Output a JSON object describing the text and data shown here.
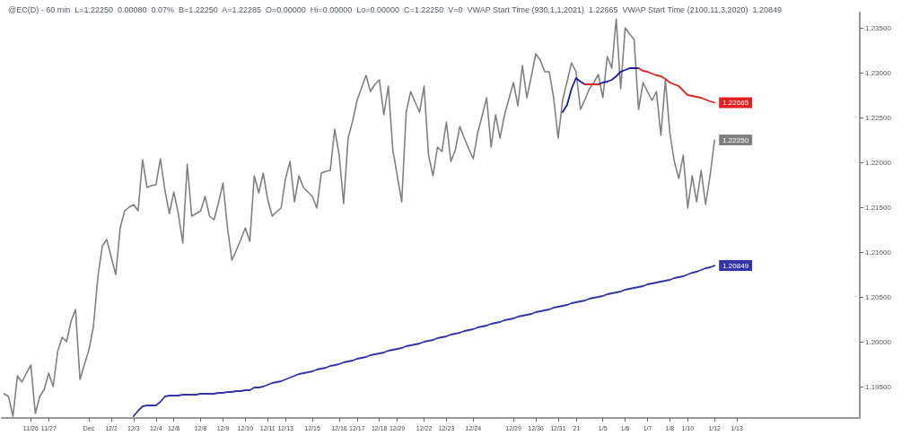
{
  "chart_data": {
    "type": "line",
    "title": "@EC(D) - 60 min  L=1.22250  0.00080  0.07%  B=1.22250  A=1.22285  O=0.00000  Hi=0.00000  Lo=0.00000  C=1.22250  V=0  VWAP Start Time (930,1,1,2021)  1.22665  VWAP Start Time (2100,11,3,2020)  1.20849",
    "categories": [
      null,
      null,
      null,
      null,
      null,
      null,
      "11/26",
      null,
      null,
      null,
      "11/27",
      null,
      null,
      null,
      null,
      null,
      null,
      null,
      null,
      "Dec",
      null,
      null,
      null,
      null,
      "12/2",
      null,
      null,
      null,
      null,
      "12/3",
      null,
      null,
      null,
      null,
      "12/4",
      null,
      null,
      null,
      "12/6",
      null,
      null,
      null,
      null,
      null,
      "12/8",
      null,
      null,
      null,
      null,
      "12/9",
      null,
      null,
      null,
      null,
      "12/10",
      null,
      null,
      null,
      null,
      "12/11",
      null,
      null,
      null,
      "12/13",
      null,
      null,
      null,
      null,
      null,
      "12/15",
      null,
      null,
      null,
      null,
      null,
      "12/16",
      null,
      null,
      null,
      "12/17",
      null,
      null,
      null,
      null,
      "12/18",
      null,
      null,
      null,
      "12/20",
      null,
      null,
      null,
      null,
      null,
      "12/22",
      null,
      null,
      null,
      null,
      "12/23",
      null,
      null,
      null,
      null,
      null,
      "12/24",
      null,
      null,
      null,
      null,
      null,
      null,
      null,
      null,
      "12/29",
      null,
      null,
      null,
      null,
      "12/30",
      null,
      null,
      null,
      null,
      "12/31",
      null,
      null,
      null,
      "'21",
      null,
      null,
      null,
      null,
      null,
      "1/5",
      null,
      null,
      null,
      null,
      "1/6",
      null,
      null,
      null,
      null,
      "1/7",
      null,
      null,
      null,
      null,
      "1/8",
      null,
      null,
      null,
      "1/10",
      null,
      null,
      null,
      null,
      null,
      "1/12",
      null,
      null,
      null,
      null,
      "1/13",
      null,
      null,
      null,
      null,
      null,
      null,
      null,
      null,
      null,
      null,
      null,
      null,
      null,
      null,
      null,
      null,
      null,
      null,
      null,
      null,
      null,
      null,
      null,
      null,
      null,
      null,
      null
    ],
    "ylim": [
      1.1915,
      1.2367
    ],
    "yticks": [
      {
        "value": 1.195,
        "label": "1.19500"
      },
      {
        "value": 1.2,
        "label": "1.20000"
      },
      {
        "value": 1.205,
        "label": "1.20500"
      },
      {
        "value": 1.21,
        "label": "1.21000"
      },
      {
        "value": 1.215,
        "label": "1.21500"
      },
      {
        "value": 1.22,
        "label": "1.22000"
      },
      {
        "value": 1.225,
        "label": "1.22500"
      },
      {
        "value": 1.23,
        "label": "1.23000"
      },
      {
        "value": 1.235,
        "label": "1.23500"
      }
    ],
    "grid": false,
    "marker": "none",
    "annotations": [
      {
        "text": "1.22665",
        "x": "1/12",
        "y": 1.22665
      },
      {
        "text": "1.22250",
        "x": "1/12",
        "y": 1.2225
      },
      {
        "text": "1.20849",
        "x": "1/12",
        "y": 1.20849
      }
    ],
    "series": [
      {
        "color": "#808080",
        "values": [
          1.1942,
          1.1939,
          1.1917,
          1.1962,
          1.1955,
          1.1965,
          1.1974,
          1.192,
          1.1939,
          1.1947,
          1.1965,
          1.195,
          1.1989,
          1.2005,
          1.2,
          1.2023,
          1.2036,
          1.1958,
          1.1975,
          1.1991,
          1.2017,
          1.2072,
          1.2107,
          1.2114,
          1.2094,
          1.2075,
          1.2127,
          1.2146,
          1.215,
          1.2153,
          1.2146,
          1.2203,
          1.2172,
          1.2174,
          1.2175,
          1.2204,
          1.2169,
          1.2143,
          1.2167,
          1.2143,
          1.211,
          1.2198,
          1.214,
          1.2143,
          1.2146,
          1.2162,
          1.214,
          1.2136,
          1.2155,
          1.2177,
          1.2127,
          1.2091,
          1.2102,
          1.2114,
          1.2127,
          1.2112,
          1.2185,
          1.2166,
          1.2188,
          1.2159,
          1.214,
          1.2145,
          1.2149,
          1.2182,
          1.2201,
          1.2156,
          1.2185,
          1.2172,
          1.2167,
          1.2162,
          1.2149,
          1.2188,
          1.219,
          1.2191,
          1.2237,
          1.2208,
          1.2154,
          1.2227,
          1.2246,
          1.2269,
          1.2283,
          1.2297,
          1.2279,
          1.2287,
          1.2292,
          1.2253,
          1.2285,
          1.2214,
          1.2185,
          1.2156,
          1.2256,
          1.2279,
          1.2267,
          1.2256,
          1.2285,
          1.2208,
          1.2185,
          1.2217,
          1.2212,
          1.2245,
          1.2201,
          1.2214,
          1.224,
          1.2227,
          1.2215,
          1.2204,
          1.2233,
          1.2252,
          1.2272,
          1.2217,
          1.2253,
          1.2227,
          1.2253,
          1.2271,
          1.2289,
          1.2263,
          1.2308,
          1.2272,
          1.2296,
          1.2321,
          1.2314,
          1.2301,
          1.2301,
          1.2272,
          1.2227,
          1.2269,
          1.229,
          1.2311,
          1.2301,
          1.2259,
          1.227,
          1.2282,
          1.2289,
          1.2298,
          1.2272,
          1.2318,
          1.2305,
          1.236,
          1.2282,
          1.235,
          1.2343,
          1.2337,
          1.2259,
          1.2289,
          1.2279,
          1.2269,
          1.2279,
          1.223,
          1.2292,
          1.2233,
          1.2201,
          1.2182,
          1.2208,
          1.2149,
          1.2185,
          1.2156,
          1.2191,
          1.2153,
          1.2185,
          1.2225,
          null,
          null,
          null,
          null,
          null,
          null,
          null,
          null,
          null,
          null,
          null,
          null,
          null,
          null,
          null,
          null,
          null,
          null,
          null,
          null,
          null,
          null,
          null,
          null,
          null,
          null,
          null,
          null,
          null,
          null,
          null,
          null
        ]
      },
      {
        "color": "#1a1aa6",
        "values": [
          null,
          null,
          null,
          null,
          null,
          null,
          null,
          null,
          null,
          null,
          null,
          null,
          null,
          null,
          null,
          null,
          null,
          null,
          null,
          null,
          null,
          null,
          null,
          null,
          null,
          null,
          null,
          null,
          null,
          null,
          null,
          null,
          null,
          null,
          null,
          null,
          null,
          null,
          null,
          null,
          null,
          null,
          null,
          null,
          null,
          null,
          null,
          null,
          null,
          null,
          null,
          null,
          null,
          null,
          null,
          null,
          null,
          null,
          null,
          null,
          null,
          null,
          null,
          null,
          null,
          null,
          null,
          null,
          null,
          null,
          null,
          null,
          null,
          null,
          null,
          null,
          null,
          null,
          null,
          null,
          null,
          null,
          null,
          null,
          null,
          null,
          null,
          null,
          null,
          null,
          null,
          null,
          null,
          null,
          null,
          null,
          null,
          null,
          null,
          null,
          null,
          null,
          null,
          null,
          null,
          null,
          null,
          null,
          null,
          null,
          null,
          null,
          null,
          null,
          null,
          null,
          null,
          null,
          null,
          null,
          null,
          null,
          null,
          null,
          null,
          1.2256,
          1.2264,
          1.2282,
          1.2294,
          1.229,
          1.2287,
          null,
          null,
          1.2287,
          1.2289,
          1.229,
          1.2292,
          1.2296,
          1.2301,
          1.2303,
          1.2305,
          1.2305,
          1.2305,
          null,
          null,
          null,
          null,
          null,
          null,
          null,
          null,
          null,
          null,
          null,
          null,
          null,
          null,
          null,
          null,
          null,
          null,
          null,
          null,
          null,
          null,
          null,
          null,
          null,
          null,
          null,
          null,
          null,
          null,
          null,
          null,
          null,
          null,
          null,
          null,
          null,
          null,
          null,
          null,
          null,
          null,
          null,
          null,
          null,
          null,
          null,
          null,
          null
        ]
      },
      {
        "color": "#e02020",
        "values": [
          null,
          null,
          null,
          null,
          null,
          null,
          null,
          null,
          null,
          null,
          null,
          null,
          null,
          null,
          null,
          null,
          null,
          null,
          null,
          null,
          null,
          null,
          null,
          null,
          null,
          null,
          null,
          null,
          null,
          null,
          null,
          null,
          null,
          null,
          null,
          null,
          null,
          null,
          null,
          null,
          null,
          null,
          null,
          null,
          null,
          null,
          null,
          null,
          null,
          null,
          null,
          null,
          null,
          null,
          null,
          null,
          null,
          null,
          null,
          null,
          null,
          null,
          null,
          null,
          null,
          null,
          null,
          null,
          null,
          null,
          null,
          null,
          null,
          null,
          null,
          null,
          null,
          null,
          null,
          null,
          null,
          null,
          null,
          null,
          null,
          null,
          null,
          null,
          null,
          null,
          null,
          null,
          null,
          null,
          null,
          null,
          null,
          null,
          null,
          null,
          null,
          null,
          null,
          null,
          null,
          null,
          null,
          null,
          null,
          null,
          null,
          null,
          null,
          null,
          null,
          null,
          null,
          null,
          null,
          null,
          null,
          null,
          null,
          null,
          null,
          null,
          null,
          null,
          null,
          null,
          1.2287,
          1.2287,
          1.2287,
          1.2287,
          null,
          null,
          null,
          null,
          null,
          null,
          null,
          null,
          1.2305,
          1.2302,
          1.2301,
          1.2299,
          1.2297,
          1.2296,
          1.2293,
          1.2289,
          1.2287,
          1.2285,
          1.228,
          1.2275,
          1.2274,
          1.2273,
          1.2272,
          1.227,
          1.2268,
          1.22665,
          null,
          null,
          null,
          null,
          null,
          null,
          null,
          null,
          null,
          null,
          null,
          null,
          null,
          null,
          null,
          null,
          null,
          null,
          null,
          null,
          null,
          null,
          null,
          null,
          null,
          null,
          null,
          null,
          null,
          null,
          null,
          null
        ]
      },
      {
        "color": "#3333aa",
        "values": [
          null,
          null,
          null,
          null,
          null,
          null,
          null,
          null,
          null,
          null,
          null,
          null,
          null,
          null,
          null,
          null,
          null,
          null,
          null,
          null,
          null,
          null,
          null,
          null,
          null,
          null,
          null,
          null,
          null,
          1.1917,
          1.1923,
          1.1928,
          1.1929,
          1.1929,
          1.1929,
          1.1933,
          1.1939,
          1.194,
          1.194,
          1.194,
          1.1941,
          1.1941,
          1.1941,
          1.1941,
          1.1942,
          1.1942,
          1.1942,
          1.1942,
          1.1943,
          1.1943,
          1.1944,
          1.1944,
          1.1945,
          1.1945,
          1.1946,
          1.1946,
          1.1949,
          1.1949,
          1.195,
          1.1952,
          1.1954,
          1.1955,
          1.1956,
          1.1958,
          1.196,
          1.1962,
          1.1964,
          1.1965,
          1.1966,
          1.1967,
          1.1969,
          1.197,
          1.1971,
          1.1973,
          1.1974,
          1.1975,
          1.1977,
          1.1978,
          1.1979,
          1.1981,
          1.1982,
          1.1983,
          1.1985,
          1.1986,
          1.1987,
          1.1988,
          1.199,
          1.1991,
          1.1992,
          1.1993,
          1.1995,
          1.1996,
          1.1997,
          1.1998,
          1.2,
          1.2001,
          1.2002,
          1.2004,
          1.2005,
          1.2006,
          1.2008,
          1.2009,
          1.201,
          1.2012,
          1.2013,
          1.2014,
          1.2016,
          1.2017,
          1.2018,
          1.202,
          1.2021,
          1.2022,
          1.2024,
          1.2025,
          1.2026,
          1.2028,
          1.2029,
          1.203,
          1.2031,
          1.2033,
          1.2034,
          1.2035,
          1.2036,
          1.2038,
          1.2039,
          1.204,
          1.2041,
          1.2043,
          1.2044,
          1.2045,
          1.2046,
          1.2048,
          1.2049,
          1.205,
          1.2051,
          1.2053,
          1.2054,
          1.2055,
          1.2056,
          1.2058,
          1.2059,
          1.206,
          1.2061,
          1.2062,
          1.2064,
          1.2065,
          1.2066,
          1.2067,
          1.2068,
          1.2069,
          1.2071,
          1.2072,
          1.2073,
          1.2075,
          1.2077,
          1.2078,
          1.208,
          1.2082,
          1.2083,
          1.20849,
          null,
          null,
          null,
          null,
          null,
          null,
          null,
          null,
          null,
          null,
          null,
          null,
          null,
          null,
          null,
          null,
          null,
          null,
          null,
          null,
          null,
          null,
          null,
          null,
          null,
          null,
          null,
          null,
          null,
          null,
          null,
          null
        ]
      }
    ]
  }
}
